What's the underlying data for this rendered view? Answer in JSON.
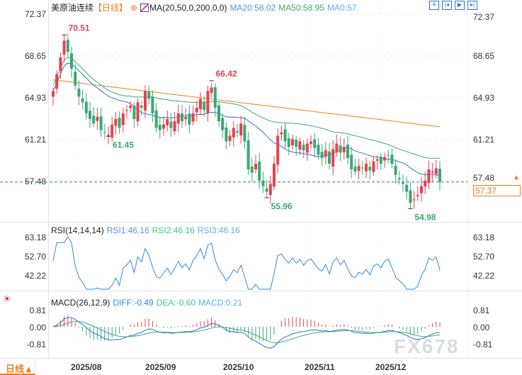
{
  "header": {
    "symbol": "美原油连续",
    "period": "【日线】",
    "indicator": "MA(20,50,0,200,0,0)",
    "ma20": "MA20:58.02",
    "ma50": "MA50:58.95",
    "ma0": "MA0:57."
  },
  "rsi_legend": {
    "title": "RSI(14,14,14)",
    "rsi1": "RSI1:46.16",
    "rsi2": "RSI2:46.16",
    "rsi3": "RSI3:46.16"
  },
  "macd_legend": {
    "title": "MACD(26,12,9)",
    "diff": "DIFF:-0.49",
    "dea": "DEA:-0.60",
    "macd": "MACD:0.21"
  },
  "price_axis": [
    "72.37",
    "68.65",
    "64.93",
    "61.21",
    "57.48"
  ],
  "rsi_axis": [
    "63.18",
    "52.70",
    "42.22"
  ],
  "macd_axis": [
    "0.81",
    "0.00",
    "-0.81"
  ],
  "current_price": "57.37",
  "period_tab": "日线▲",
  "watermark": "FX678",
  "colors": {
    "up": "#e8414f",
    "down": "#3aa874",
    "ma20": "#2d6fe0",
    "ma50": "#3aa874",
    "ma200": "#f07f1e",
    "rsi": "#2d8be0"
  },
  "chart_data": {
    "type": "candlestick",
    "x_ticks": [
      "2025/08",
      "2025/09",
      "2025/10",
      "2025/11",
      "2025/12"
    ],
    "ylim": [
      53.5,
      72.37
    ],
    "closes": [
      65.5,
      67.0,
      68.5,
      70.0,
      69.0,
      67.5,
      66.0,
      65.0,
      64.5,
      63.5,
      63.0,
      62.6,
      63.2,
      62.0,
      61.8,
      61.6,
      62.5,
      63.0,
      62.2,
      63.5,
      63.8,
      64.2,
      63.0,
      64.5,
      64.0,
      65.5,
      64.8,
      63.5,
      62.2,
      62.0,
      62.5,
      63.0,
      62.2,
      62.8,
      63.5,
      62.8,
      63.2,
      62.5,
      63.5,
      64.0,
      64.8,
      63.8,
      65.5,
      65.8,
      64.0,
      62.8,
      62.0,
      61.0,
      61.5,
      62.2,
      61.8,
      62.6,
      61.0,
      58.5,
      58.2,
      59.0,
      57.5,
      57.0,
      56.5,
      57.2,
      59.0,
      61.5,
      61.8,
      61.0,
      60.5,
      61.2,
      60.5,
      61.0,
      60.2,
      60.8,
      61.0,
      60.4,
      59.8,
      59.5,
      60.2,
      59.0,
      60.3,
      60.8,
      60.0,
      60.5,
      59.5,
      58.5,
      58.3,
      58.8,
      58.6,
      59.0,
      58.4,
      59.2,
      59.4,
      59.0,
      59.6,
      59.8,
      59.0,
      58.0,
      57.6,
      57.2,
      56.5,
      55.5,
      55.8,
      56.2,
      57.0,
      57.5,
      58.5,
      58.3,
      58.6,
      57.37
    ],
    "ma200_range": [
      66.5,
      62.3
    ],
    "annotations": [
      {
        "text": "70.51",
        "value": 70.51,
        "bar": 3
      },
      {
        "text": "66.42",
        "value": 66.42,
        "bar": 43
      },
      {
        "text": "61.45",
        "value": 61.45,
        "bar": 15
      },
      {
        "text": "55.96",
        "value": 55.96,
        "bar": 58
      },
      {
        "text": "54.98",
        "value": 54.98,
        "bar": 97
      }
    ]
  }
}
